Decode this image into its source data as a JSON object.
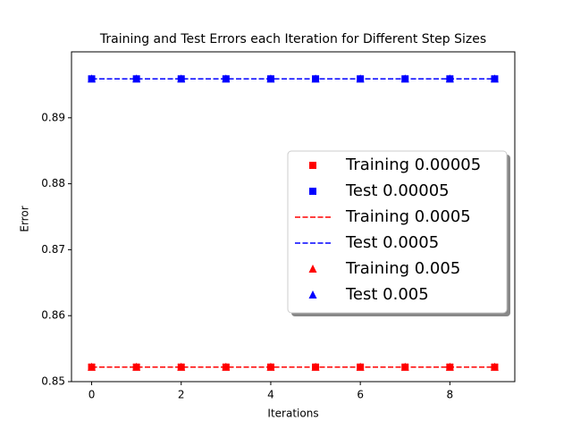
{
  "chart_data": {
    "type": "line",
    "title": "Training and Test Errors each Iteration for Different Step Sizes",
    "x_label": "Iterations",
    "y_label": "Error",
    "x": [
      0,
      1,
      2,
      3,
      4,
      5,
      6,
      7,
      8,
      9
    ],
    "xlim": [
      -0.45,
      9.45
    ],
    "xticks": [
      0,
      2,
      4,
      6,
      8
    ],
    "ylim": [
      0.85,
      0.9
    ],
    "yticks": [
      0.85,
      0.86,
      0.87,
      0.88,
      0.89
    ],
    "legend": "center right",
    "series": [
      {
        "name": "Training 0.00005",
        "color": "#ff0000",
        "marker": "s",
        "linestyle": "none",
        "values": [
          0.8522,
          0.8522,
          0.8522,
          0.8522,
          0.8522,
          0.8522,
          0.8522,
          0.8522,
          0.8522,
          0.8522
        ]
      },
      {
        "name": "Test 0.00005",
        "color": "#0000ff",
        "marker": "s",
        "linestyle": "none",
        "values": [
          0.8959,
          0.8959,
          0.8959,
          0.8959,
          0.8959,
          0.8959,
          0.8959,
          0.8959,
          0.8959,
          0.8959
        ]
      },
      {
        "name": "Training 0.0005",
        "color": "#ff0000",
        "marker": "none",
        "linestyle": "dashed",
        "values": [
          0.8522,
          0.8522,
          0.8522,
          0.8522,
          0.8522,
          0.8522,
          0.8522,
          0.8522,
          0.8522,
          0.8522
        ]
      },
      {
        "name": "Test 0.0005",
        "color": "#0000ff",
        "marker": "none",
        "linestyle": "dashed",
        "values": [
          0.8959,
          0.8959,
          0.8959,
          0.8959,
          0.8959,
          0.8959,
          0.8959,
          0.8959,
          0.8959,
          0.8959
        ]
      },
      {
        "name": "Training 0.005",
        "color": "#ff0000",
        "marker": "^",
        "linestyle": "none",
        "values": [
          0.8522,
          0.8522,
          0.8522,
          0.8522,
          0.8522,
          0.8522,
          0.8522,
          0.8522,
          0.8522,
          0.8522
        ]
      },
      {
        "name": "Test 0.005",
        "color": "#0000ff",
        "marker": "^",
        "linestyle": "none",
        "values": [
          0.8959,
          0.8959,
          0.8959,
          0.8959,
          0.8959,
          0.8959,
          0.8959,
          0.8959,
          0.8959,
          0.8959
        ]
      }
    ]
  }
}
